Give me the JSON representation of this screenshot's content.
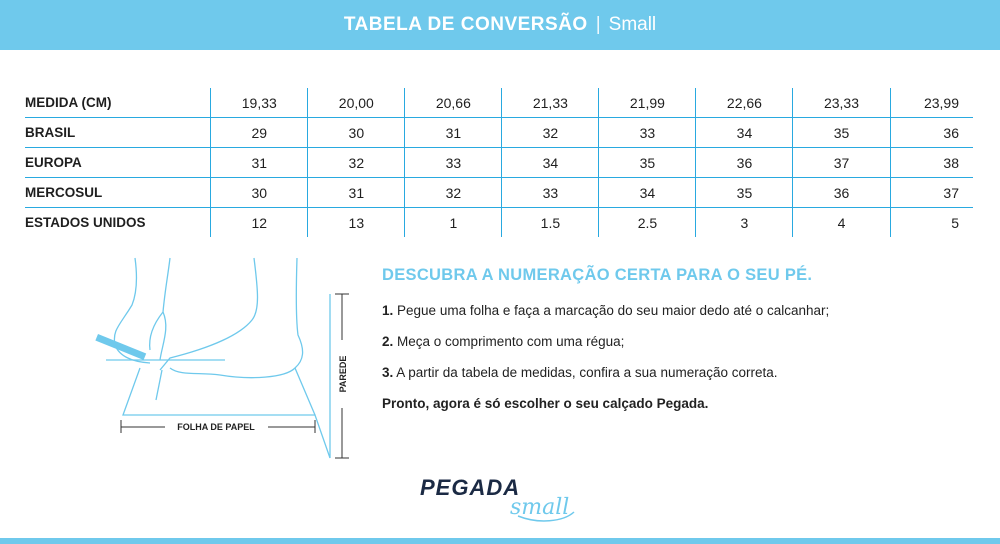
{
  "header": {
    "title": "TABELA DE CONVERSÃO",
    "separator": "|",
    "subtitle": "Small"
  },
  "table": {
    "rows": [
      {
        "label": "MEDIDA (CM)",
        "values": [
          "19,33",
          "20,00",
          "20,66",
          "21,33",
          "21,99",
          "22,66",
          "23,33",
          "23,99"
        ]
      },
      {
        "label": "BRASIL",
        "values": [
          "29",
          "30",
          "31",
          "32",
          "33",
          "34",
          "35",
          "36"
        ]
      },
      {
        "label": "EUROPA",
        "values": [
          "31",
          "32",
          "33",
          "34",
          "35",
          "36",
          "37",
          "38"
        ]
      },
      {
        "label": "MERCOSUL",
        "values": [
          "30",
          "31",
          "32",
          "33",
          "34",
          "35",
          "36",
          "37"
        ]
      },
      {
        "label": "ESTADOS UNIDOS",
        "values": [
          "12",
          "13",
          "1",
          "1.5",
          "2.5",
          "3",
          "4",
          "5"
        ]
      }
    ]
  },
  "illustration": {
    "paper_label": "FOLHA DE PAPEL",
    "wall_label": "PAREDE"
  },
  "instructions": {
    "heading": "DESCUBRA A NUMERAÇÃO CERTA PARA O SEU PÉ.",
    "steps": [
      {
        "num": "1.",
        "text": "Pegue uma folha e faça a marcação do seu maior dedo até o calcanhar;"
      },
      {
        "num": "2.",
        "text": "Meça o comprimento com uma régua;"
      },
      {
        "num": "3.",
        "text": "A partir da tabela de medidas, confira a sua numeração correta."
      }
    ],
    "closing": "Pronto, agora é só escolher o seu calçado Pegada."
  },
  "logo": {
    "brand": "PEGADA",
    "sub": "small"
  },
  "colors": {
    "accent": "#6fc9ec",
    "line": "#29a9e0",
    "brand_dark": "#1b2a44"
  }
}
